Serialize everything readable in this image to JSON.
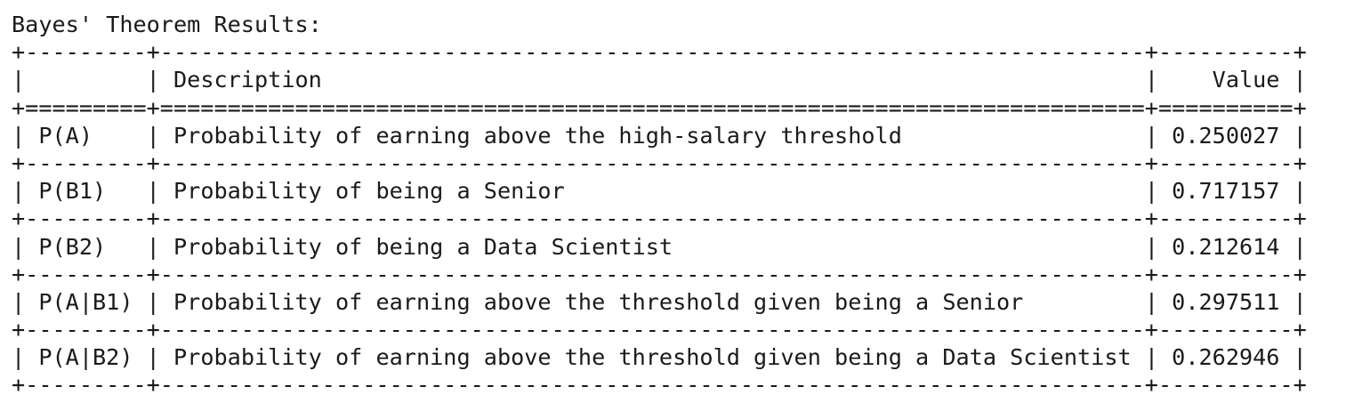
{
  "heading": "Bayes' Theorem Results:",
  "table": {
    "columns": [
      "",
      "Description",
      "Value"
    ],
    "rows": [
      {
        "symbol": "P(A)",
        "description": "Probability of earning above the high-salary threshold",
        "value": "0.250027"
      },
      {
        "symbol": "P(B1)",
        "description": "Probability of being a Senior",
        "value": "0.717157"
      },
      {
        "symbol": "P(B2)",
        "description": "Probability of being a Data Scientist",
        "value": "0.212614"
      },
      {
        "symbol": "P(A|B1)",
        "description": "Probability of earning above the threshold given being a Senior",
        "value": "0.297511"
      },
      {
        "symbol": "P(A|B2)",
        "description": "Probability of earning above the threshold given being a Data Scientist",
        "value": "0.262946"
      }
    ]
  }
}
